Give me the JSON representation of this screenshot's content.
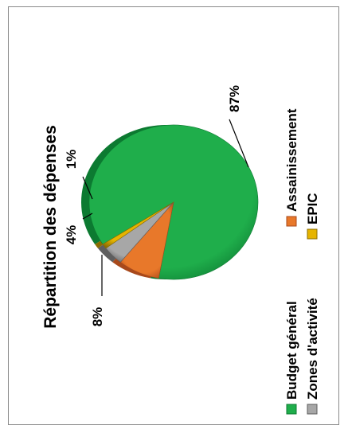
{
  "chart_data": {
    "type": "pie",
    "title": "Répartition des dépenses",
    "orientation": "rotated-90-ccw",
    "slices": [
      {
        "name": "Budget général",
        "value": 87,
        "label": "87%",
        "color": "#1fae4b",
        "dark": "#0c7a31"
      },
      {
        "name": "Assainissement",
        "value": 8,
        "label": "8%",
        "color": "#e8782a",
        "dark": "#a8491b"
      },
      {
        "name": "Zones d'activité",
        "value": 4,
        "label": "4%",
        "color": "#a7a7a7",
        "dark": "#5e5e5e"
      },
      {
        "name": "EPIC",
        "value": 1,
        "label": "1%",
        "color": "#e6b400",
        "dark": "#8a6c00"
      }
    ],
    "legend_position": "bottom"
  }
}
